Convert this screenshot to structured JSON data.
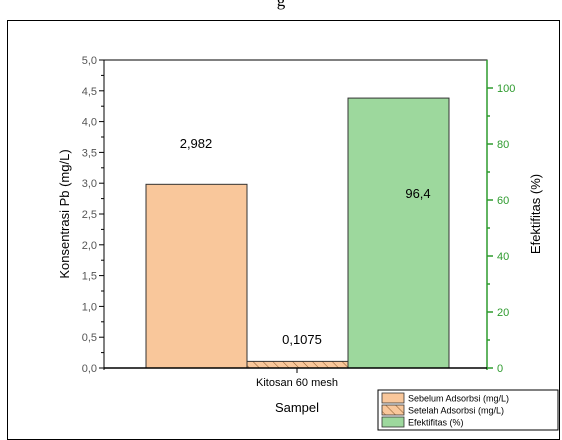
{
  "caption": "g",
  "chart_data": {
    "type": "bar",
    "categories": [
      "Kitosan 60 mesh"
    ],
    "xlabel": "Sampel",
    "ylabel": "Konsentrasi Pb (mg/L)",
    "y2label": "Efektifitas (%)",
    "ylim": [
      0,
      5.0
    ],
    "y2lim": [
      0,
      110
    ],
    "y_ticks": [
      "0,0",
      "0,5",
      "1,0",
      "1,5",
      "2,0",
      "2,5",
      "3,0",
      "3,5",
      "4,0",
      "4,5",
      "5,0"
    ],
    "y2_ticks": [
      "0",
      "20",
      "40",
      "60",
      "80",
      "100"
    ],
    "series": [
      {
        "name": "Sebelum Adsorbsi (mg/L)",
        "axis": "left",
        "values": [
          2.982
        ],
        "label": "2,982",
        "color": "#f9c79b"
      },
      {
        "name": "Setelah Adsorbsi (mg/L)",
        "axis": "left",
        "values": [
          0.1075
        ],
        "label": "0,1075",
        "color": "#f9c79b",
        "hatch": true
      },
      {
        "name": "Efektifitas (%)",
        "axis": "right",
        "values": [
          96.4
        ],
        "label": "96,4",
        "color": "#9dd89d"
      }
    ],
    "legend_position": "bottom-right",
    "grid": false
  }
}
